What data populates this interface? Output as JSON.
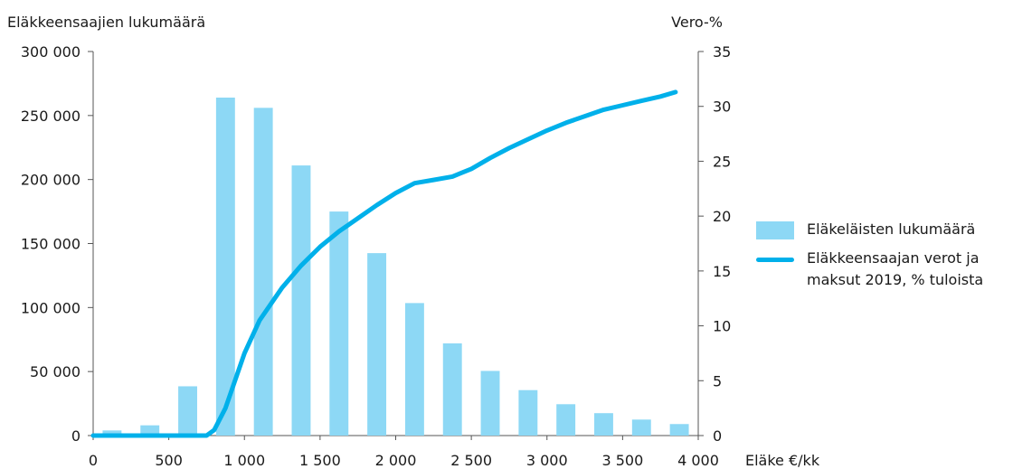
{
  "chart_data": {
    "type": "bar",
    "left_axis_title": "Eläkkeensaajien lukumäärä",
    "right_axis_title": "Vero-%",
    "xlabel": "Eläke €/kk",
    "x_ticks": [
      0,
      500,
      1000,
      1500,
      2000,
      2500,
      3000,
      3500,
      4000
    ],
    "x_tick_labels": [
      "0",
      "500",
      "1 000",
      "1 500",
      "2 000",
      "2 500",
      "3 000",
      "3 500",
      "4 000"
    ],
    "xlim": [
      0,
      4000
    ],
    "ylim_left": [
      0,
      300000
    ],
    "y_ticks_left": [
      0,
      50000,
      100000,
      150000,
      200000,
      250000,
      300000
    ],
    "y_tick_labels_left": [
      "0",
      "50 000",
      "100 000",
      "150 000",
      "200 000",
      "250 000",
      "300 000"
    ],
    "ylim_right": [
      0,
      35
    ],
    "y_ticks_right": [
      0,
      5,
      10,
      15,
      20,
      25,
      30,
      35
    ],
    "y_tick_labels_right": [
      "0",
      "5",
      "10",
      "15",
      "20",
      "25",
      "30",
      "35"
    ],
    "bar_width": 125,
    "series": [
      {
        "name": "Eläkeläisten lukumäärä",
        "kind": "bar",
        "axis": "left",
        "color": "#8dd8f5",
        "x": [
          125,
          375,
          625,
          875,
          1125,
          1375,
          1625,
          1875,
          2125,
          2375,
          2625,
          2875,
          3125,
          3375,
          3625,
          3875
        ],
        "values": [
          4000,
          8000,
          38500,
          264000,
          256000,
          211000,
          175000,
          142500,
          103500,
          72000,
          50500,
          35500,
          24500,
          17500,
          12500,
          9000
        ]
      },
      {
        "name": "Eläkkeensaajan verot ja maksut 2019, % tuloista",
        "kind": "line",
        "axis": "right",
        "color": "#00b0ea",
        "x": [
          0,
          750,
          800,
          875,
          950,
          1000,
          1100,
          1250,
          1375,
          1500,
          1625,
          1750,
          1875,
          2000,
          2125,
          2250,
          2375,
          2500,
          2625,
          2750,
          2875,
          3000,
          3125,
          3250,
          3375,
          3500,
          3625,
          3750,
          3850
        ],
        "values": [
          0,
          0,
          0.5,
          2.5,
          5.5,
          7.5,
          10.5,
          13.5,
          15.5,
          17.2,
          18.6,
          19.8,
          21.0,
          22.1,
          23.0,
          23.3,
          23.6,
          24.3,
          25.3,
          26.2,
          27.0,
          27.8,
          28.5,
          29.1,
          29.7,
          30.1,
          30.5,
          30.9,
          31.3
        ]
      }
    ],
    "legend_position": "right"
  }
}
